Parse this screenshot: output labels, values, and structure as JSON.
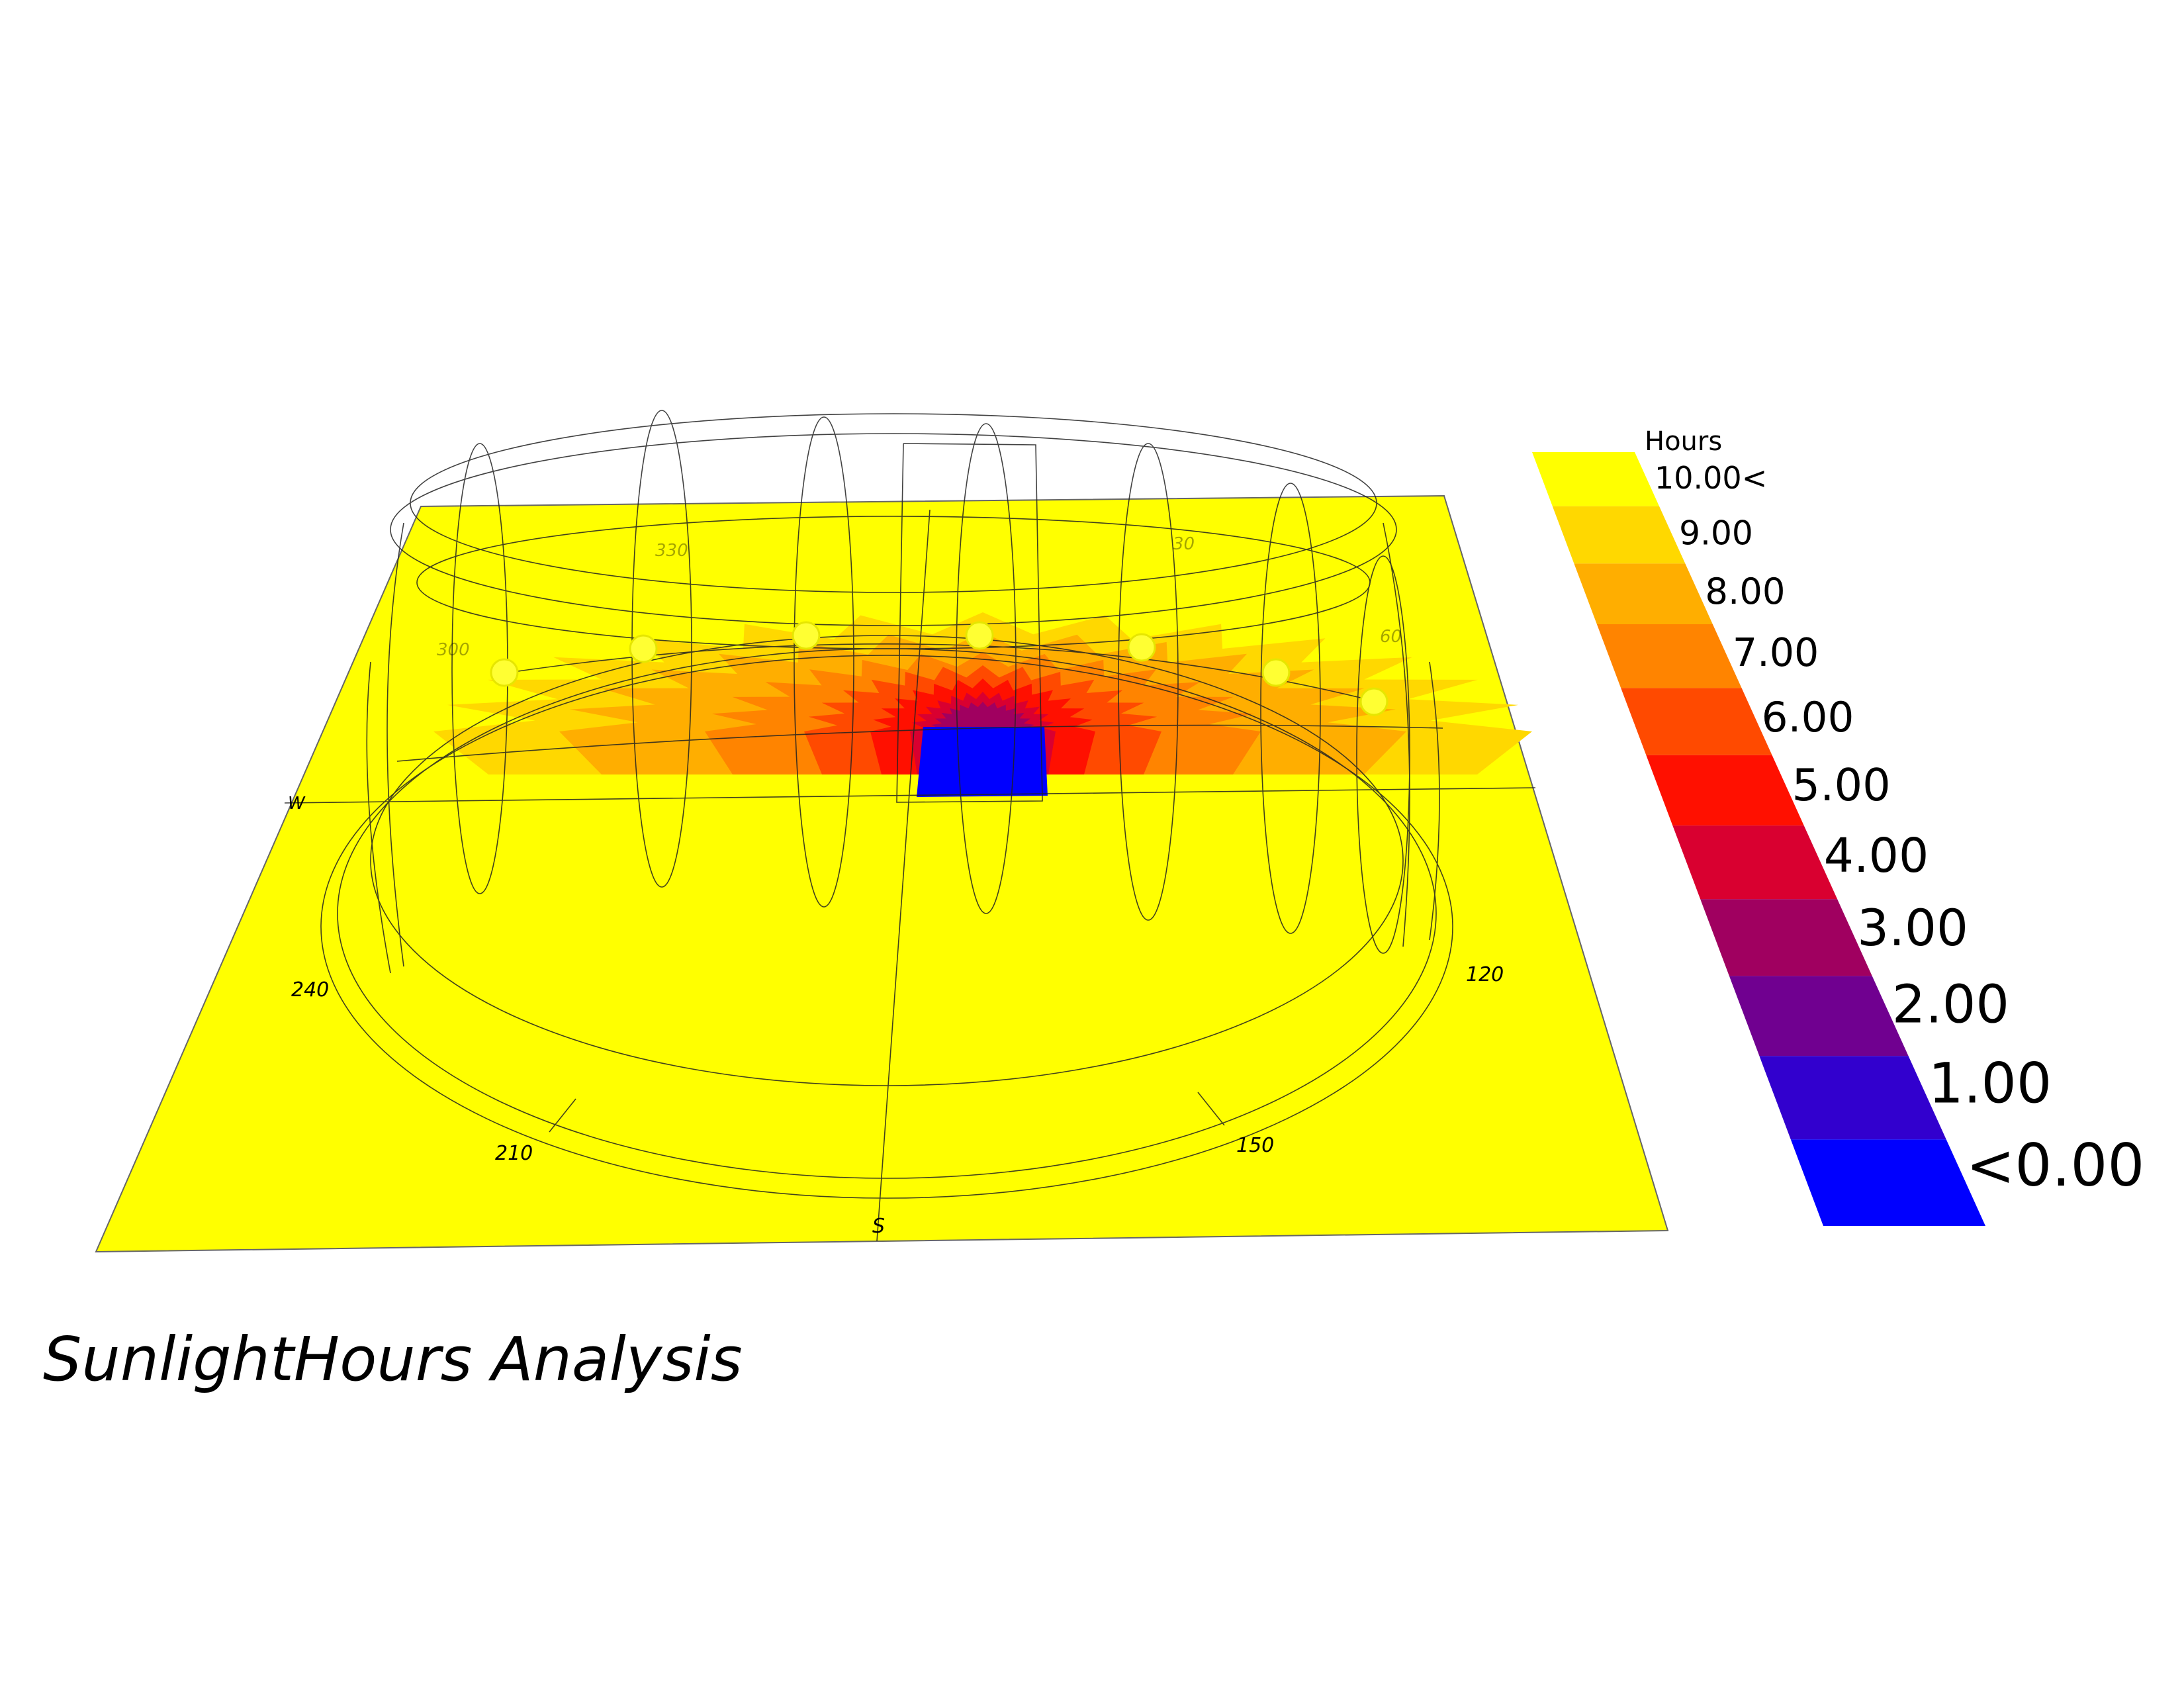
{
  "title": "SunlightHours Analysis",
  "legend": {
    "heading": "Hours",
    "labels": [
      "10.00<",
      "9.00",
      "8.00",
      "7.00",
      "6.00",
      "5.00",
      "4.00",
      "3.00",
      "2.00",
      "1.00",
      "<0.00"
    ],
    "colors": [
      "#FFFF00",
      "#FFD800",
      "#FFAE00",
      "#FF8400",
      "#FF4A00",
      "#FF1000",
      "#D90030",
      "#A00060",
      "#700090",
      "#3200CE",
      "#0000FF"
    ]
  },
  "compass": {
    "north": "",
    "south": "S",
    "west": "W",
    "ticks": [
      "330",
      "30",
      "300",
      "60",
      "240",
      "120",
      "210",
      "150"
    ]
  },
  "heatmap": {
    "base_color": "#FFFF00",
    "obstruction_color": "#0000FF"
  }
}
